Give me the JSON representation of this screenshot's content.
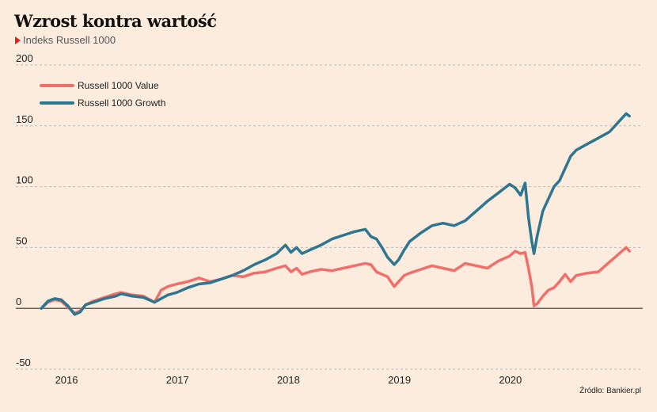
{
  "header": {
    "title": "Wzrost kontra wartość",
    "subtitle": "Indeks Russell 1000"
  },
  "footer": {
    "source": "Źródło: Bankier.pl"
  },
  "colors": {
    "background": "#fbecdd",
    "value": "#f06f6a",
    "growth": "#2e7690",
    "grid": "#bbb"
  },
  "chart_data": {
    "type": "line",
    "title": "Wzrost kontra wartość",
    "subtitle": "Indeks Russell 1000",
    "xlabel": "",
    "ylabel": "",
    "xlim": [
      2015.75,
      2021.2
    ],
    "ylim": [
      -50,
      200
    ],
    "yticks": [
      "200",
      "150",
      "100",
      "50",
      "0",
      "-50"
    ],
    "ytick_values": [
      200,
      150,
      100,
      50,
      0,
      -50
    ],
    "xticks": [
      "2016",
      "2017",
      "2018",
      "2019",
      "2020"
    ],
    "xtick_values": [
      2016,
      2017,
      2018,
      2019,
      2020
    ],
    "grid": true,
    "legend": "top-left",
    "series": [
      {
        "name": "Russell 1000 Value",
        "color": "#f06f6a",
        "x": [
          2015.78,
          2015.84,
          2015.9,
          2015.96,
          2016.02,
          2016.08,
          2016.13,
          2016.18,
          2016.25,
          2016.35,
          2016.45,
          2016.5,
          2016.6,
          2016.7,
          2016.8,
          2016.86,
          2016.92,
          2017.0,
          2017.1,
          2017.2,
          2017.3,
          2017.4,
          2017.5,
          2017.6,
          2017.7,
          2017.8,
          2017.9,
          2017.98,
          2018.03,
          2018.08,
          2018.13,
          2018.2,
          2018.3,
          2018.4,
          2018.5,
          2018.6,
          2018.7,
          2018.75,
          2018.8,
          2018.85,
          2018.9,
          2018.96,
          2019.0,
          2019.05,
          2019.1,
          2019.2,
          2019.3,
          2019.4,
          2019.5,
          2019.6,
          2019.7,
          2019.8,
          2019.9,
          2020.0,
          2020.05,
          2020.1,
          2020.14,
          2020.17,
          2020.2,
          2020.22,
          2020.25,
          2020.3,
          2020.35,
          2020.4,
          2020.45,
          2020.5,
          2020.55,
          2020.6,
          2020.7,
          2020.8,
          2020.9,
          2020.95,
          2021.0,
          2021.05,
          2021.08
        ],
        "values": [
          0,
          5,
          7,
          6,
          1,
          -4,
          -2,
          3,
          6,
          9,
          12,
          13,
          11,
          10,
          5,
          15,
          18,
          20,
          22,
          25,
          22,
          24,
          27,
          26,
          29,
          30,
          33,
          35,
          30,
          33,
          28,
          30,
          32,
          31,
          33,
          35,
          37,
          36,
          30,
          28,
          26,
          18,
          22,
          27,
          29,
          32,
          35,
          33,
          31,
          37,
          35,
          33,
          39,
          43,
          47,
          45,
          46,
          33,
          18,
          2,
          4,
          10,
          15,
          17,
          22,
          28,
          22,
          27,
          29,
          30,
          38,
          42,
          46,
          50,
          47
        ]
      },
      {
        "name": "Russell 1000 Growth",
        "color": "#2e7690",
        "x": [
          2015.78,
          2015.84,
          2015.9,
          2015.96,
          2016.02,
          2016.08,
          2016.13,
          2016.18,
          2016.25,
          2016.35,
          2016.45,
          2016.5,
          2016.6,
          2016.7,
          2016.8,
          2016.86,
          2016.92,
          2017.0,
          2017.1,
          2017.2,
          2017.3,
          2017.4,
          2017.5,
          2017.6,
          2017.7,
          2017.8,
          2017.9,
          2017.98,
          2018.03,
          2018.08,
          2018.13,
          2018.2,
          2018.3,
          2018.4,
          2018.5,
          2018.6,
          2018.7,
          2018.75,
          2018.8,
          2018.85,
          2018.9,
          2018.96,
          2019.0,
          2019.05,
          2019.1,
          2019.2,
          2019.3,
          2019.4,
          2019.5,
          2019.6,
          2019.7,
          2019.8,
          2019.9,
          2020.0,
          2020.05,
          2020.1,
          2020.14,
          2020.17,
          2020.2,
          2020.22,
          2020.25,
          2020.3,
          2020.35,
          2020.4,
          2020.45,
          2020.5,
          2020.55,
          2020.6,
          2020.7,
          2020.8,
          2020.9,
          2020.95,
          2021.0,
          2021.05,
          2021.08
        ],
        "values": [
          0,
          6,
          8,
          7,
          2,
          -5,
          -3,
          3,
          5,
          8,
          10,
          12,
          10,
          9,
          5,
          8,
          11,
          13,
          17,
          20,
          21,
          24,
          27,
          31,
          36,
          40,
          45,
          52,
          46,
          50,
          45,
          48,
          52,
          57,
          60,
          63,
          65,
          59,
          57,
          50,
          42,
          36,
          40,
          48,
          55,
          62,
          68,
          70,
          68,
          72,
          80,
          88,
          95,
          102,
          99,
          93,
          103,
          75,
          55,
          45,
          60,
          80,
          90,
          100,
          105,
          115,
          125,
          130,
          135,
          140,
          145,
          150,
          155,
          160,
          158
        ]
      }
    ]
  }
}
